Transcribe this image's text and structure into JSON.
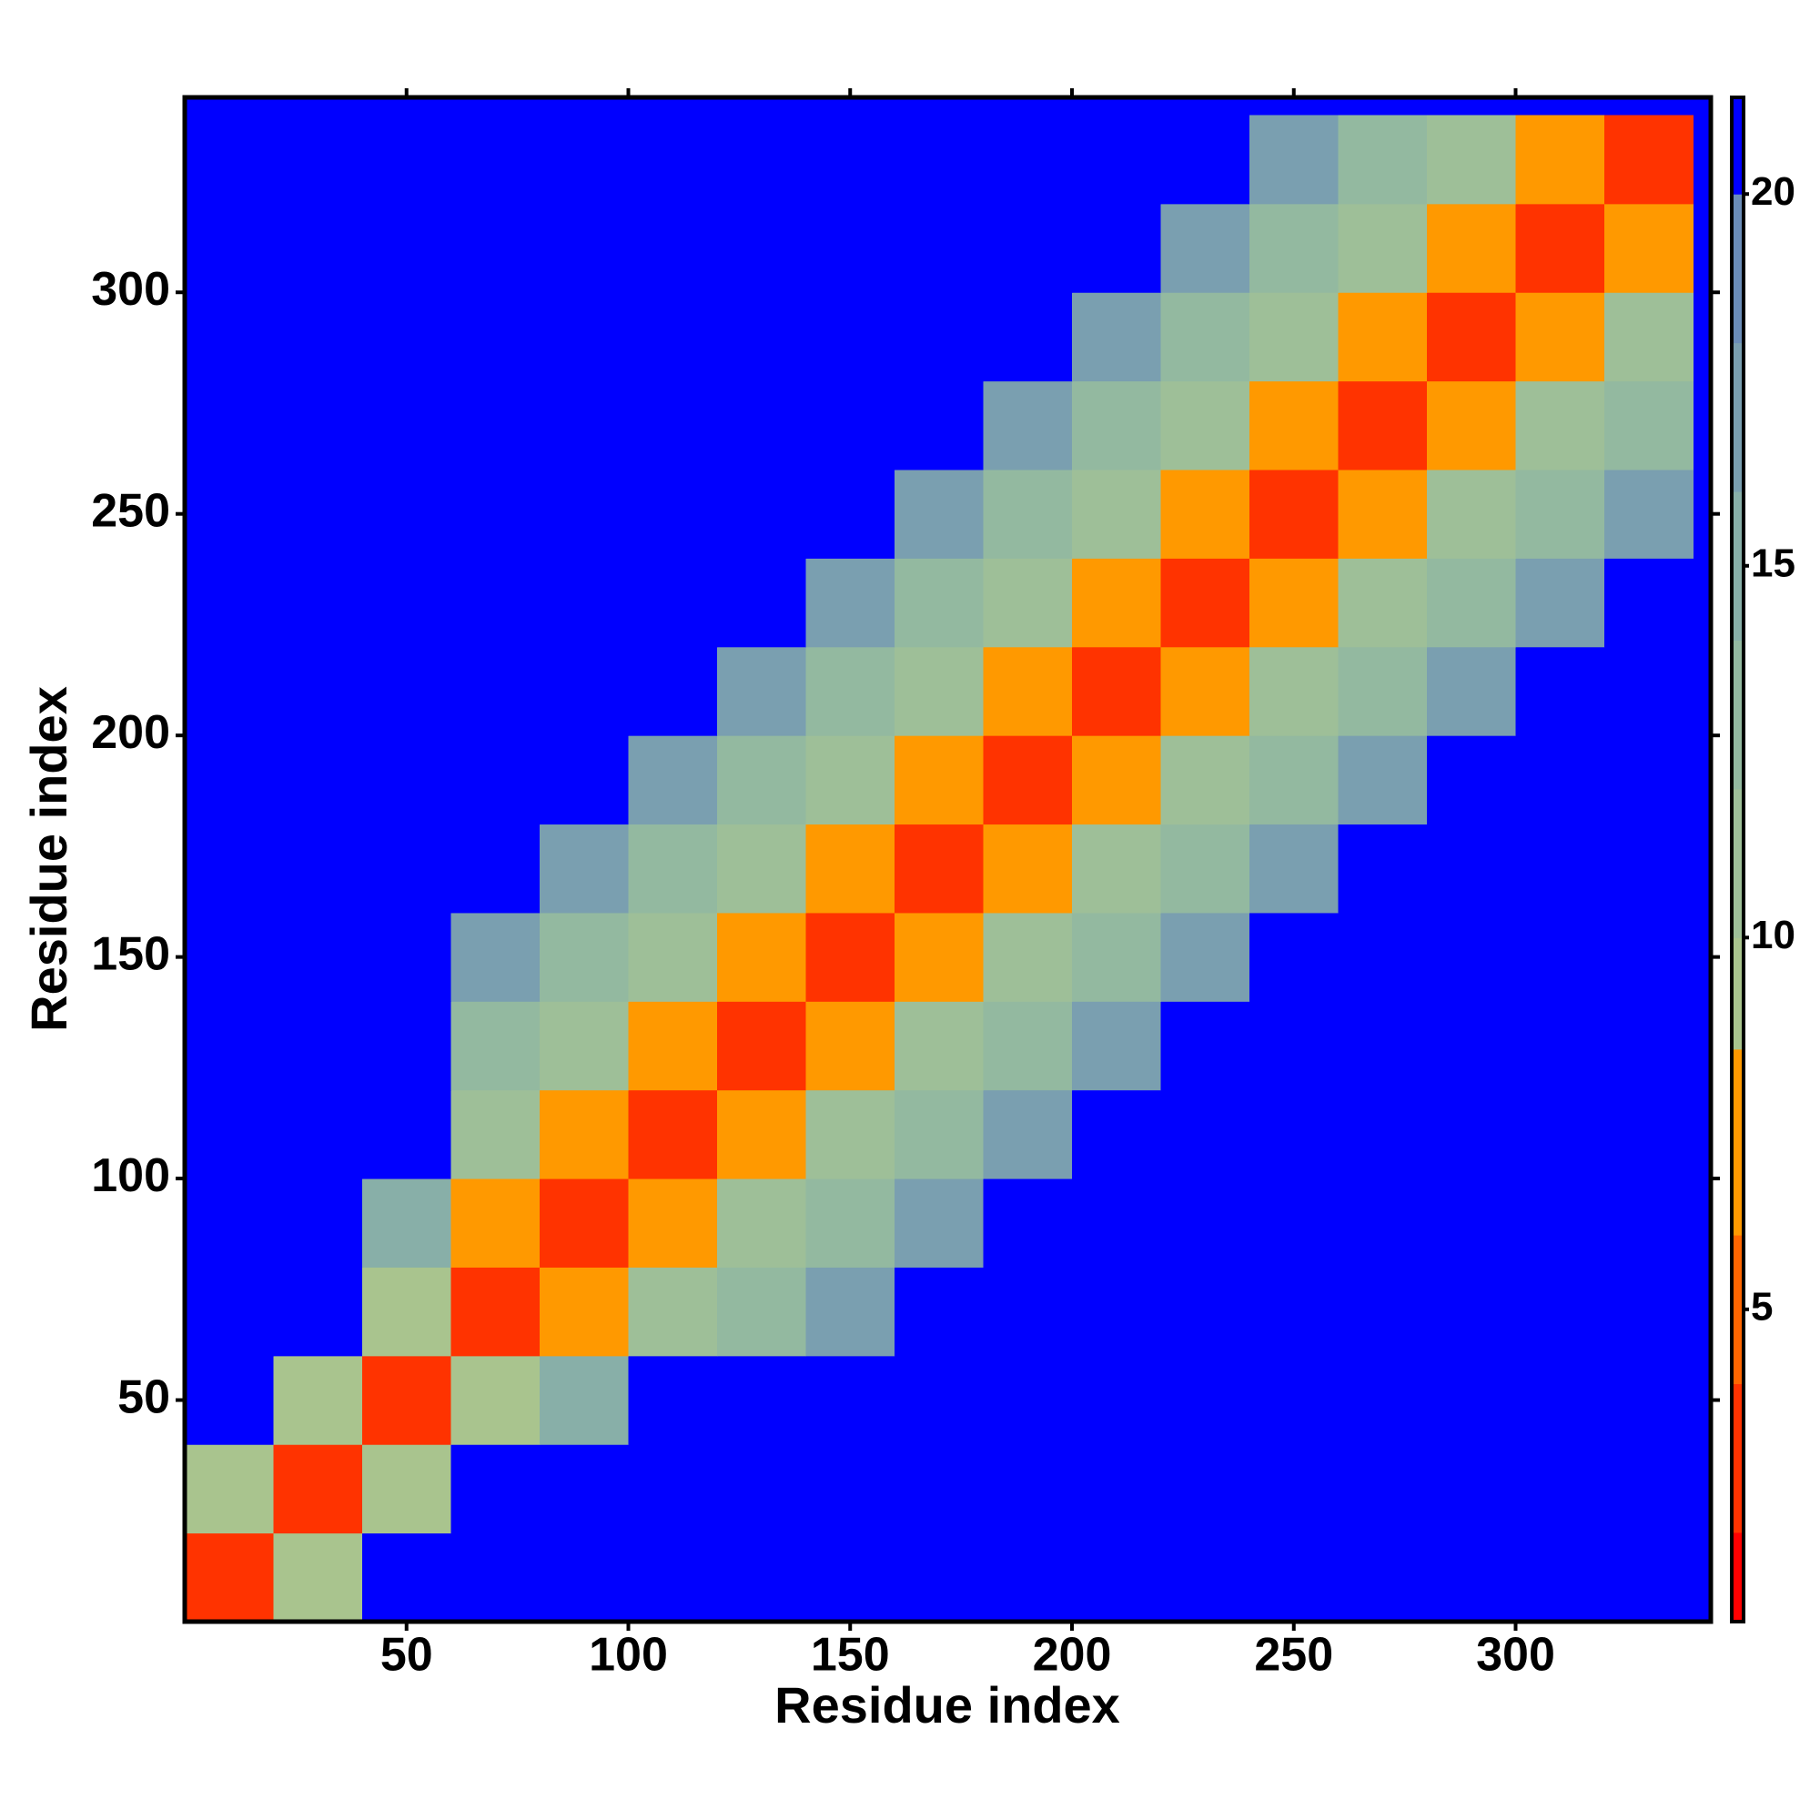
{
  "chart_data": {
    "type": "heatmap",
    "x_label": "Residue index",
    "y_label": "Residue index",
    "x": [
      10,
      30,
      50,
      70,
      90,
      110,
      130,
      150,
      170,
      190,
      210,
      230,
      250,
      270,
      290,
      310,
      330
    ],
    "y": [
      10,
      30,
      50,
      70,
      90,
      110,
      130,
      150,
      170,
      190,
      210,
      230,
      250,
      270,
      290,
      310,
      330
    ],
    "z": [
      [
        4,
        10,
        21,
        21,
        21,
        21,
        21,
        21,
        21,
        21,
        21,
        21,
        21,
        21,
        21,
        21,
        21
      ],
      [
        10,
        4,
        10,
        21,
        21,
        21,
        21,
        21,
        21,
        21,
        21,
        21,
        21,
        21,
        21,
        21,
        21
      ],
      [
        21,
        10,
        4,
        10,
        15,
        21,
        21,
        21,
        21,
        21,
        21,
        21,
        21,
        21,
        21,
        21,
        21
      ],
      [
        21,
        21,
        10,
        4,
        8,
        11,
        13,
        17,
        21,
        21,
        21,
        21,
        21,
        21,
        21,
        21,
        21
      ],
      [
        21,
        21,
        15,
        8,
        4,
        8,
        11,
        13,
        17,
        21,
        21,
        21,
        21,
        21,
        21,
        21,
        21
      ],
      [
        21,
        21,
        21,
        11,
        8,
        4,
        8,
        11,
        13,
        17,
        21,
        21,
        21,
        21,
        21,
        21,
        21
      ],
      [
        21,
        21,
        21,
        13,
        11,
        8,
        4,
        8,
        11,
        13,
        17,
        21,
        21,
        21,
        21,
        21,
        21
      ],
      [
        21,
        21,
        21,
        17,
        13,
        11,
        8,
        4,
        8,
        11,
        13,
        17,
        21,
        21,
        21,
        21,
        21
      ],
      [
        21,
        21,
        21,
        21,
        17,
        13,
        11,
        8,
        4,
        8,
        11,
        13,
        17,
        21,
        21,
        21,
        21
      ],
      [
        21,
        21,
        21,
        21,
        21,
        17,
        13,
        11,
        8,
        4,
        8,
        11,
        13,
        17,
        21,
        21,
        21
      ],
      [
        21,
        21,
        21,
        21,
        21,
        21,
        17,
        13,
        11,
        8,
        4,
        8,
        11,
        13,
        17,
        21,
        21
      ],
      [
        21,
        21,
        21,
        21,
        21,
        21,
        21,
        17,
        13,
        11,
        8,
        4,
        8,
        11,
        13,
        17,
        21
      ],
      [
        21,
        21,
        21,
        21,
        21,
        21,
        21,
        21,
        17,
        13,
        11,
        8,
        4,
        8,
        11,
        13,
        17
      ],
      [
        21,
        21,
        21,
        21,
        21,
        21,
        21,
        21,
        21,
        17,
        13,
        11,
        8,
        4,
        8,
        11,
        13
      ],
      [
        21,
        21,
        21,
        21,
        21,
        21,
        21,
        21,
        21,
        21,
        17,
        13,
        11,
        8,
        4,
        8,
        11
      ],
      [
        21,
        21,
        21,
        21,
        21,
        21,
        21,
        21,
        21,
        21,
        21,
        17,
        13,
        11,
        8,
        4,
        8
      ],
      [
        21,
        21,
        21,
        21,
        21,
        21,
        21,
        21,
        21,
        21,
        21,
        21,
        17,
        13,
        11,
        8,
        4
      ]
    ],
    "xlim": [
      0,
      344
    ],
    "ylim": [
      0,
      344
    ],
    "xticks": [
      50,
      100,
      150,
      200,
      250,
      300
    ],
    "yticks": [
      50,
      100,
      150,
      200,
      250,
      300
    ],
    "zlim": [
      0.8,
      21.3
    ],
    "zticks": [
      5,
      10,
      15,
      20
    ],
    "color_levels": [
      0.8,
      2,
      4,
      6,
      8.5,
      10,
      12,
      14,
      16,
      18,
      20,
      21.3
    ],
    "colors": [
      "#ff0000",
      "#ff3300",
      "#ff6600",
      "#ff9900",
      "#a9c48e",
      "#9ebf98",
      "#93b9a0",
      "#88afa8",
      "#7a9fb0",
      "#6b8db8",
      "#0000ff"
    ]
  }
}
